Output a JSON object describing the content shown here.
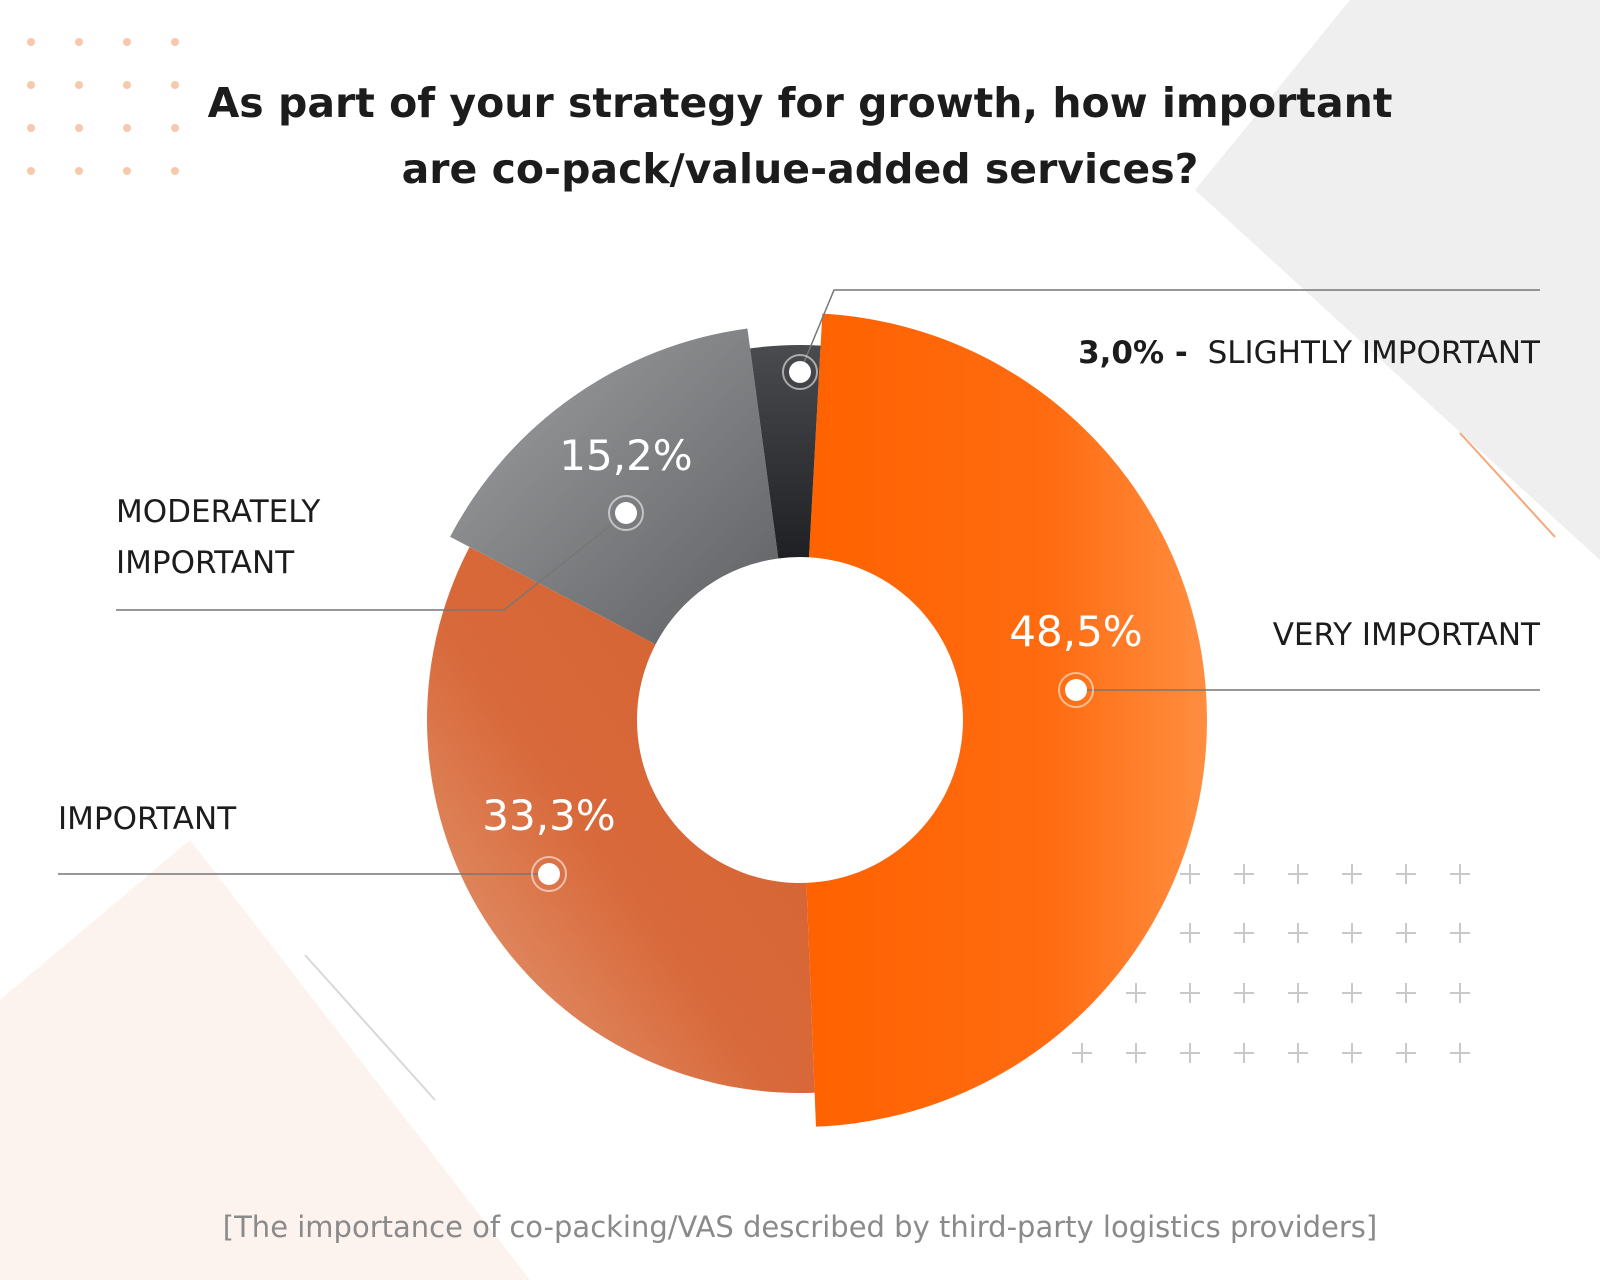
{
  "title": {
    "line1": "As part of your strategy for growth, how important",
    "line2": "are co-pack/value-added services?"
  },
  "caption": "[The importance of co-packing/VAS described by third-party logistics providers]",
  "colors": {
    "very_important": "#ff6600",
    "important": "#d9693a",
    "moderately_important": "#808184",
    "slightly_important": "#3a3b3e",
    "leader_line": "#777777",
    "text_dark": "#1c1c1c",
    "decor_gray": "#f0f0f0",
    "decor_peach": "#fdf3ee",
    "dot_orange": "#f6c9ad"
  },
  "chart_data": {
    "type": "pie",
    "variant": "donut",
    "title": "As part of your strategy for growth, how important are co-pack/value-added services?",
    "unit": "%",
    "series": [
      {
        "name": "VERY IMPORTANT",
        "value": 48.5,
        "label": "48,5%",
        "color": "#ff6600"
      },
      {
        "name": "IMPORTANT",
        "value": 33.3,
        "label": "33,3%",
        "color": "#d9693a"
      },
      {
        "name": "MODERATELY IMPORTANT",
        "value": 15.2,
        "label": "15,2%",
        "color": "#808184"
      },
      {
        "name": "SLIGHTLY IMPORTANT",
        "value": 3.0,
        "label": "3,0%",
        "color": "#3a3b3e"
      }
    ],
    "legend_labels": {
      "very_important": "VERY IMPORTANT",
      "important": "IMPORTANT",
      "moderately_line1": "MODERATELY",
      "moderately_line2": "IMPORTANT",
      "slightly_value": "3,0% -",
      "slightly_name": "SLIGHTLY IMPORTANT"
    }
  }
}
